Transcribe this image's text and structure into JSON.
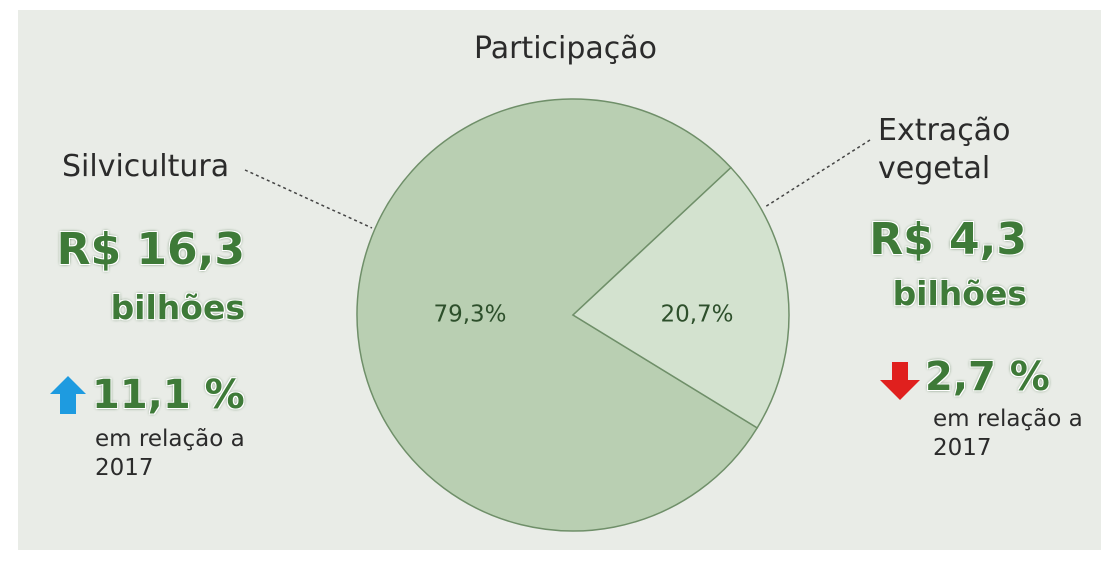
{
  "chart_data": {
    "type": "pie",
    "title": "Participação",
    "categories": [
      "Silvicultura",
      "Extração vegetal"
    ],
    "values": [
      79.3,
      20.7
    ],
    "value_labels": [
      "79,3%",
      "20,7%"
    ],
    "colors": [
      "#b9cfb2",
      "#d3e2cf"
    ],
    "callouts": [
      {
        "amount": "R$ 16,3",
        "unit": "bilhões",
        "direction": "up",
        "change": "11,1 %",
        "note": "em relação a 2017"
      },
      {
        "amount": "R$ 4,3",
        "unit": "bilhões",
        "direction": "down",
        "change": "2,7 %",
        "note": "em relação a 2017"
      }
    ]
  }
}
